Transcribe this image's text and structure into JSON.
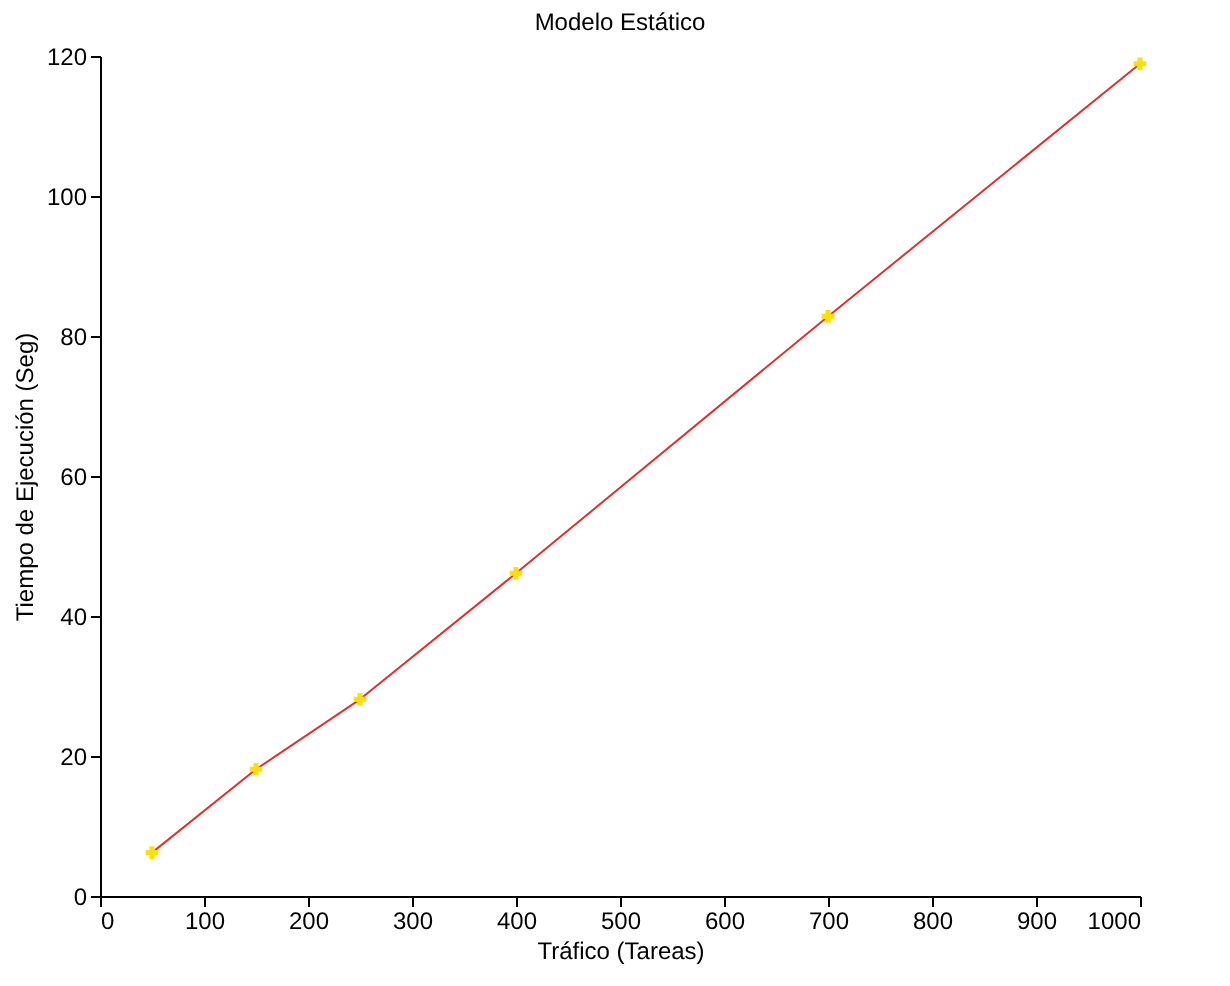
{
  "chart_data": {
    "type": "line",
    "title": "Modelo Estático",
    "xlabel": "Tráfico (Tareas)",
    "ylabel": "Tiempo de Ejecución (Seg)",
    "x": [
      50,
      150,
      250,
      400,
      700,
      1000
    ],
    "series": [
      {
        "color": "#e03030",
        "marker": "none",
        "values": [
          6.2,
          18.1,
          28.1,
          46.1,
          82.8,
          118.9
        ]
      },
      {
        "type": "scatter",
        "color": "#ffe000",
        "marker": "cross",
        "values": [
          6.2,
          18.1,
          28.1,
          46.1,
          82.8,
          118.9
        ]
      }
    ],
    "xlim": [
      0,
      1000
    ],
    "xticks": [
      0,
      100,
      200,
      300,
      400,
      500,
      600,
      700,
      800,
      900,
      1000
    ],
    "ylim": [
      0,
      120
    ],
    "yticks": [
      0,
      20,
      40,
      60,
      80,
      100,
      120
    ],
    "grid": false
  }
}
